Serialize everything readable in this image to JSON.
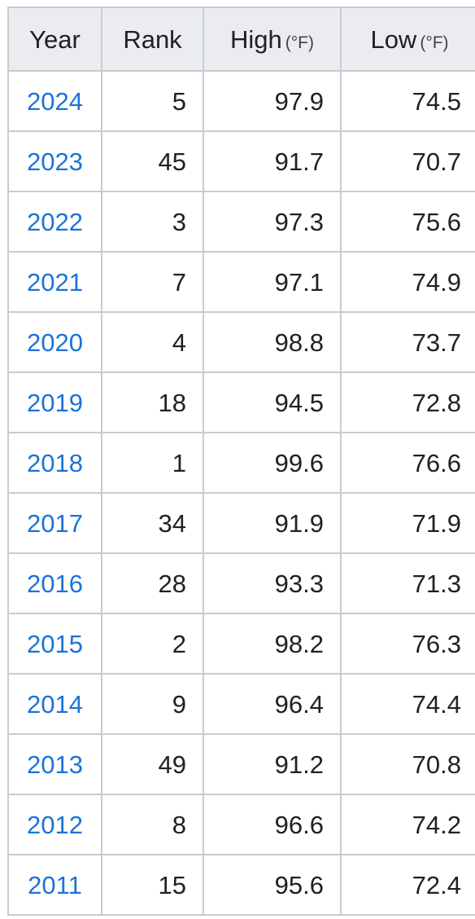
{
  "table": {
    "headers": {
      "year": "Year",
      "rank": "Rank",
      "high": "High",
      "high_unit": "(°F)",
      "low": "Low",
      "low_unit": "(°F)"
    },
    "rows": [
      {
        "year": "2024",
        "rank": "5",
        "high": "97.9",
        "low": "74.5"
      },
      {
        "year": "2023",
        "rank": "45",
        "high": "91.7",
        "low": "70.7"
      },
      {
        "year": "2022",
        "rank": "3",
        "high": "97.3",
        "low": "75.6"
      },
      {
        "year": "2021",
        "rank": "7",
        "high": "97.1",
        "low": "74.9"
      },
      {
        "year": "2020",
        "rank": "4",
        "high": "98.8",
        "low": "73.7"
      },
      {
        "year": "2019",
        "rank": "18",
        "high": "94.5",
        "low": "72.8"
      },
      {
        "year": "2018",
        "rank": "1",
        "high": "99.6",
        "low": "76.6"
      },
      {
        "year": "2017",
        "rank": "34",
        "high": "91.9",
        "low": "71.9"
      },
      {
        "year": "2016",
        "rank": "28",
        "high": "93.3",
        "low": "71.3"
      },
      {
        "year": "2015",
        "rank": "2",
        "high": "98.2",
        "low": "76.3"
      },
      {
        "year": "2014",
        "rank": "9",
        "high": "96.4",
        "low": "74.4"
      },
      {
        "year": "2013",
        "rank": "49",
        "high": "91.2",
        "low": "70.8"
      },
      {
        "year": "2012",
        "rank": "8",
        "high": "96.6",
        "low": "74.2"
      },
      {
        "year": "2011",
        "rank": "15",
        "high": "95.6",
        "low": "72.4"
      }
    ]
  },
  "colors": {
    "link": "#1a73d9",
    "header_bg": "#eaecf0",
    "border": "#c8ccd1"
  }
}
